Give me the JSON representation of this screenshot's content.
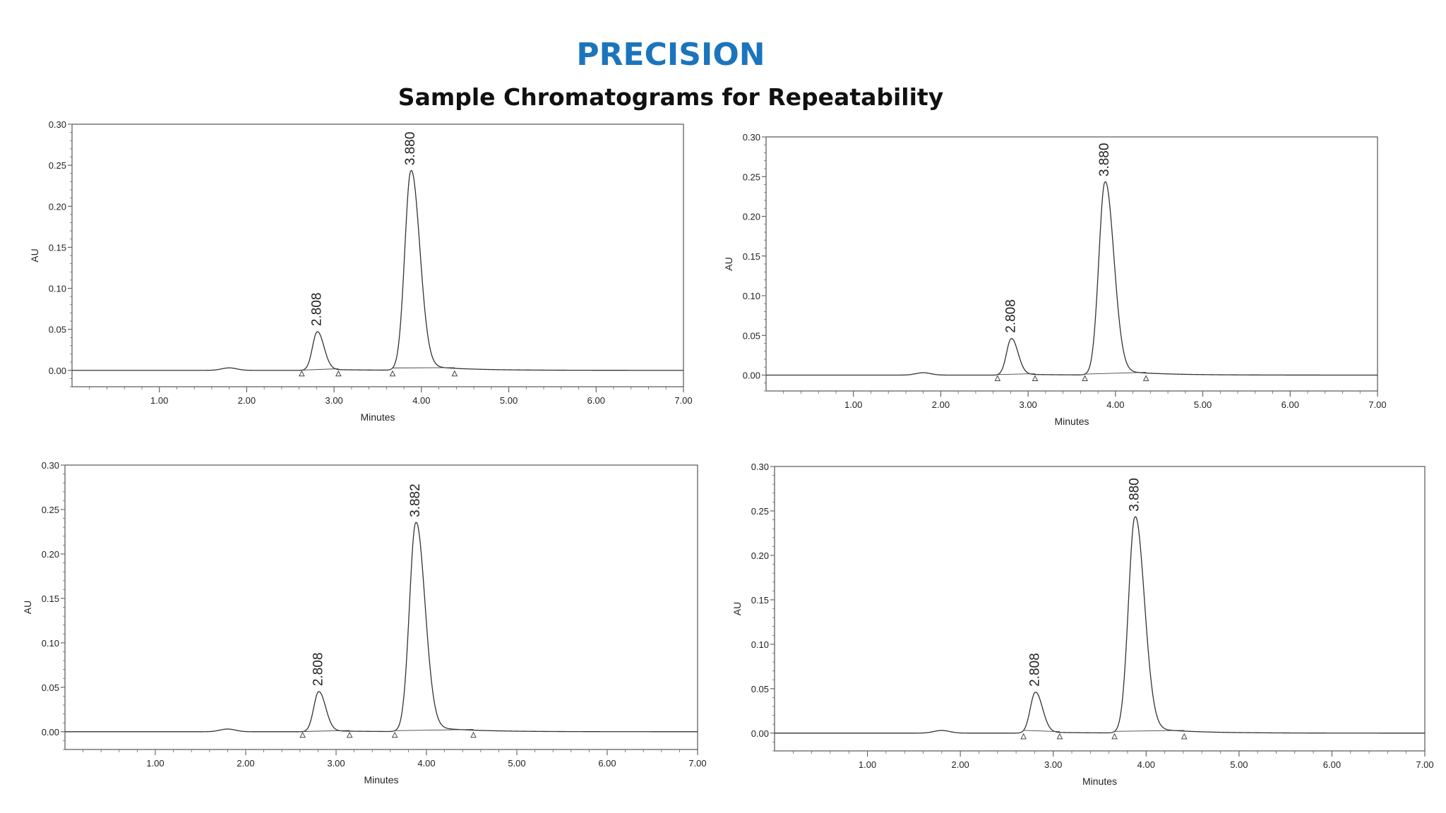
{
  "title": "PRECISION",
  "subtitle": "Sample Chromatograms for Repeatability",
  "chart_data": [
    {
      "type": "line",
      "xlabel": "Minutes",
      "ylabel": "AU",
      "xlim": [
        0,
        7.0
      ],
      "ylim": [
        -0.02,
        0.3
      ],
      "xticks": [
        "1.00",
        "2.00",
        "3.00",
        "4.00",
        "5.00",
        "6.00",
        "7.00"
      ],
      "yticks": [
        "0.00",
        "0.05",
        "0.10",
        "0.15",
        "0.20",
        "0.25",
        "0.30"
      ],
      "peaks": [
        {
          "rt": 2.808,
          "label": "2.808",
          "height": 0.047,
          "start": 2.63,
          "end": 3.05
        },
        {
          "rt": 3.88,
          "label": "3.880",
          "height": 0.243,
          "start": 3.67,
          "end": 4.38
        }
      ]
    },
    {
      "type": "line",
      "xlabel": "Minutes",
      "ylabel": "AU",
      "xlim": [
        0,
        7.0
      ],
      "ylim": [
        -0.02,
        0.3
      ],
      "xticks": [
        "1.00",
        "2.00",
        "3.00",
        "4.00",
        "5.00",
        "6.00",
        "7.00"
      ],
      "yticks": [
        "0.00",
        "0.05",
        "0.10",
        "0.15",
        "0.20",
        "0.25",
        "0.30"
      ],
      "peaks": [
        {
          "rt": 2.808,
          "label": "2.808",
          "height": 0.046,
          "start": 2.65,
          "end": 3.08
        },
        {
          "rt": 3.88,
          "label": "3.880",
          "height": 0.243,
          "start": 3.65,
          "end": 4.35
        }
      ]
    },
    {
      "type": "line",
      "xlabel": "Minutes",
      "ylabel": "AU",
      "xlim": [
        0,
        7.0
      ],
      "ylim": [
        -0.02,
        0.3
      ],
      "xticks": [
        "1.00",
        "2.00",
        "3.00",
        "4.00",
        "5.00",
        "6.00",
        "7.00"
      ],
      "yticks": [
        "0.00",
        "0.05",
        "0.10",
        "0.15",
        "0.20",
        "0.25",
        "0.30"
      ],
      "peaks": [
        {
          "rt": 2.808,
          "label": "2.808",
          "height": 0.045,
          "start": 2.63,
          "end": 3.15
        },
        {
          "rt": 3.882,
          "label": "3.882",
          "height": 0.235,
          "start": 3.65,
          "end": 4.52
        }
      ]
    },
    {
      "type": "line",
      "xlabel": "Minutes",
      "ylabel": "AU",
      "xlim": [
        0,
        7.0
      ],
      "ylim": [
        -0.02,
        0.3
      ],
      "xticks": [
        "1.00",
        "2.00",
        "3.00",
        "4.00",
        "5.00",
        "6.00",
        "7.00"
      ],
      "yticks": [
        "0.00",
        "0.05",
        "0.10",
        "0.15",
        "0.20",
        "0.25",
        "0.30"
      ],
      "peaks": [
        {
          "rt": 2.808,
          "label": "2.808",
          "height": 0.046,
          "start": 2.68,
          "end": 3.07
        },
        {
          "rt": 3.88,
          "label": "3.880",
          "height": 0.243,
          "start": 3.66,
          "end": 4.41
        }
      ]
    }
  ]
}
